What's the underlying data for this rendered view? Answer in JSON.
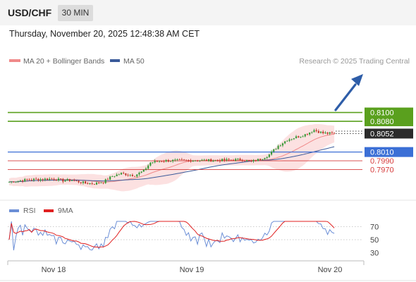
{
  "header": {
    "pair": "USD/CHF",
    "timeframe": "30 MIN"
  },
  "timestamp": "Thursday, November 20, 2025 12:48:38 AM CET",
  "legend": {
    "ma20": "MA 20 + Bollinger Bands",
    "ma50": "MA 50",
    "credit": "Research © 2025 Trading Central"
  },
  "colors": {
    "target": "#5aa01e",
    "current": "#2b2b2b",
    "pivot": "#3b6fd6",
    "support": "#d63b3b",
    "ma20": "#f08a8a",
    "ma50": "#3a5a9a",
    "bollinger": "#fbdcdc",
    "candle_up": "#3a9a3a",
    "candle_down": "#c0392b",
    "arrow": "#2e5da8",
    "rsi": "#6b8ed6",
    "rsi_ma": "#e02020"
  },
  "chart_data": [
    {
      "type": "candlestick",
      "levels": [
        {
          "value": 0.81,
          "label": "0.8100",
          "kind": "target"
        },
        {
          "value": 0.808,
          "label": "0.8080",
          "kind": "target"
        },
        {
          "value": 0.8052,
          "label": "0.8052",
          "kind": "current"
        },
        {
          "value": 0.801,
          "label": "0.8010",
          "kind": "pivot"
        },
        {
          "value": 0.799,
          "label": "0.7990",
          "kind": "support"
        },
        {
          "value": 0.797,
          "label": "0.7970",
          "kind": "support"
        }
      ],
      "x_ticks": [
        "Nov 18",
        "Nov 19",
        "Nov 20"
      ],
      "ylim": [
        0.793,
        0.8115
      ],
      "series": [
        {
          "name": "MA 20 + Bollinger Bands"
        },
        {
          "name": "MA 50"
        }
      ]
    },
    {
      "type": "line",
      "series": [
        {
          "name": "RSI"
        },
        {
          "name": "9MA"
        }
      ],
      "y_ticks": [
        "70",
        "50",
        "30"
      ],
      "ylim": [
        20,
        80
      ]
    }
  ]
}
